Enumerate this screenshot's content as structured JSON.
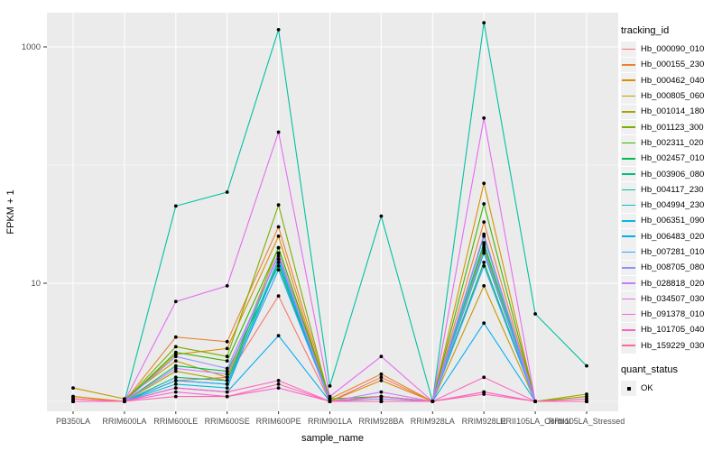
{
  "chart_data": {
    "type": "line",
    "title": "",
    "xlabel": "sample_name",
    "ylabel": "FPKM + 1",
    "yscale": "log10",
    "ylim": [
      0.82,
      1950
    ],
    "ytick_labels": [
      "10",
      "1000"
    ],
    "ytick_values": [
      10,
      1000
    ],
    "yminor_values": [
      1,
      100
    ],
    "grid": "white-on-grey",
    "legend_position": "right",
    "point_shape": "black-dot",
    "categories": [
      "PB350LA",
      "RRIM600LA",
      "RRIM600LE",
      "RRIM600SE",
      "RRIM600PE",
      "RRIM901LA",
      "RRIM928BA",
      "RRIM928LA",
      "RRIM928LE",
      "RRII105LA_Control",
      "RRII105LA_Stressed"
    ],
    "series": [
      {
        "name": "Hb_000090_010",
        "color": "#F8766D",
        "values": [
          1.05,
          1,
          1.5,
          1.6,
          7.8,
          1,
          1.6,
          1,
          1.2,
          1,
          1
        ]
      },
      {
        "name": "Hb_000155_230",
        "color": "#EA8331",
        "values": [
          1.1,
          1,
          3.5,
          3.2,
          30,
          1.05,
          1.7,
          1,
          33,
          1,
          1
        ]
      },
      {
        "name": "Hb_000462_040",
        "color": "#D89000",
        "values": [
          1.1,
          1,
          2.5,
          2.8,
          25,
          1,
          1.5,
          1,
          70,
          1,
          1
        ]
      },
      {
        "name": "Hb_000805_060",
        "color": "#C09B00",
        "values": [
          1.3,
          1.05,
          2.2,
          1.6,
          20,
          1,
          1.1,
          1,
          9.5,
          1,
          1
        ]
      },
      {
        "name": "Hb_001014_180",
        "color": "#A3A500",
        "values": [
          1,
          1,
          1.8,
          1.5,
          15,
          1,
          1,
          1,
          20,
          1,
          1.15
        ]
      },
      {
        "name": "Hb_001123_300",
        "color": "#7CAE00",
        "values": [
          1,
          1,
          2.9,
          2.4,
          46,
          1,
          1.1,
          1,
          21,
          1,
          1.1
        ]
      },
      {
        "name": "Hb_002311_020",
        "color": "#39B600",
        "values": [
          1,
          1,
          2.6,
          2.2,
          20,
          1.05,
          1.1,
          1,
          47,
          1,
          1
        ]
      },
      {
        "name": "Hb_002457_010",
        "color": "#00BB4E",
        "values": [
          1,
          1,
          2.0,
          1.8,
          14,
          1,
          1,
          1,
          15,
          1,
          1
        ]
      },
      {
        "name": "Hb_003906_080",
        "color": "#00BF7D",
        "values": [
          1,
          1,
          1.6,
          1.5,
          18,
          1,
          1,
          1,
          25,
          1,
          1
        ]
      },
      {
        "name": "Hb_004117_230",
        "color": "#00C1A3",
        "values": [
          1,
          1,
          45,
          59,
          1400,
          1.35,
          37,
          1,
          1600,
          5.5,
          2.0
        ]
      },
      {
        "name": "Hb_004994_230",
        "color": "#00BFC4",
        "values": [
          1,
          1,
          1.5,
          1.4,
          16,
          1,
          1,
          1,
          22,
          1,
          1
        ]
      },
      {
        "name": "Hb_006351_090",
        "color": "#00BAE0",
        "values": [
          1,
          1,
          1.4,
          1.3,
          15,
          1,
          1,
          1,
          18,
          1,
          1
        ]
      },
      {
        "name": "Hb_006483_020",
        "color": "#00B0F6",
        "values": [
          1,
          1,
          1.3,
          1.2,
          3.6,
          1,
          1,
          1,
          4.6,
          1,
          1
        ]
      },
      {
        "name": "Hb_007281_010",
        "color": "#35A2FF",
        "values": [
          1,
          1,
          1.5,
          1.4,
          13,
          1,
          1,
          1,
          14,
          1,
          1
        ]
      },
      {
        "name": "Hb_008705_080",
        "color": "#9590FF",
        "values": [
          1,
          1,
          2.4,
          1.9,
          17,
          1,
          1.05,
          1,
          19,
          1,
          1
        ]
      },
      {
        "name": "Hb_028818_020",
        "color": "#C77CFF",
        "values": [
          1,
          1,
          1.9,
          1.7,
          18,
          1,
          1.2,
          1,
          26,
          1,
          1
        ]
      },
      {
        "name": "Hb_034507_030",
        "color": "#E76BF3",
        "values": [
          1,
          1,
          7,
          9.5,
          190,
          1.1,
          2.4,
          1,
          250,
          1,
          1
        ]
      },
      {
        "name": "Hb_091378_010",
        "color": "#FA62DB",
        "values": [
          1,
          1,
          1.2,
          1.1,
          1.3,
          1,
          1,
          1,
          1.2,
          1,
          1
        ]
      },
      {
        "name": "Hb_101705_040",
        "color": "#FF61C3",
        "values": [
          1,
          1,
          1.3,
          1.2,
          1.5,
          1,
          1.1,
          1,
          1.6,
          1,
          1.05
        ]
      },
      {
        "name": "Hb_159229_030",
        "color": "#FF67A4",
        "values": [
          1.05,
          1,
          1.1,
          1.1,
          1.4,
          1,
          1,
          1,
          1.15,
          1,
          1
        ]
      }
    ],
    "legend": {
      "color_title": "tracking_id",
      "shape_title": "quant_status",
      "shape_items": [
        "OK"
      ]
    }
  },
  "colors": {
    "panel_bg": "#EBEBEB",
    "grid_major": "#FFFFFF",
    "grid_minor": "#F7F7F7",
    "tick_text": "#4D4D4D",
    "axis_text": "#000000",
    "point": "#000000",
    "key_bg": "#F0F0F0"
  }
}
